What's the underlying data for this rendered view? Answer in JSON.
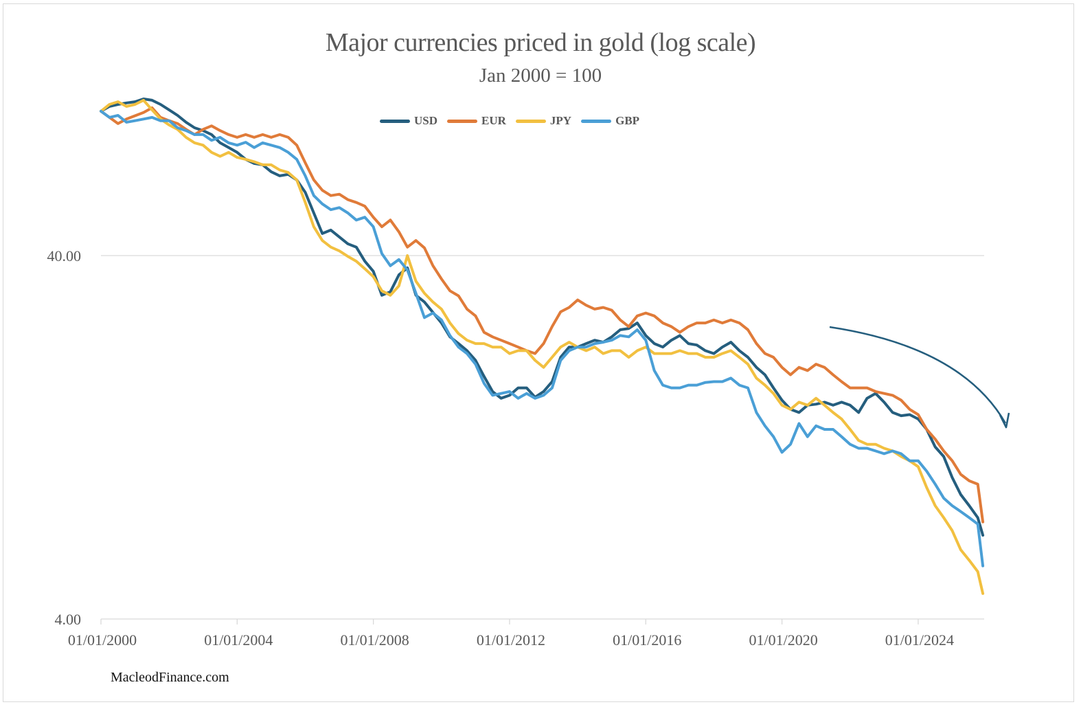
{
  "chart_data": {
    "type": "line",
    "title": "Major currencies priced in gold (log scale)",
    "subtitle": "Jan 2000 = 100",
    "xlabel": "",
    "ylabel": "",
    "y_scale": "log",
    "ylim": [
      4,
      150
    ],
    "y_ticks": [
      4,
      40
    ],
    "y_tick_labels": [
      "4.00",
      "40.00"
    ],
    "x_ticks": [
      2000,
      2004,
      2008,
      2012,
      2016,
      2020,
      2024
    ],
    "x_tick_labels": [
      "01/01/2000",
      "01/01/2004",
      "01/01/2008",
      "01/01/2012",
      "01/01/2016",
      "01/01/2020",
      "01/01/2024"
    ],
    "xlim": [
      2000,
      2025.9
    ],
    "grid": "horizontal",
    "legend_position": "top-center",
    "annotation": "downward-curved-arrow",
    "x": [
      2000.0,
      2000.25,
      2000.5,
      2000.75,
      2001.0,
      2001.25,
      2001.5,
      2001.75,
      2002.0,
      2002.25,
      2002.5,
      2002.75,
      2003.0,
      2003.25,
      2003.5,
      2003.75,
      2004.0,
      2004.25,
      2004.5,
      2004.75,
      2005.0,
      2005.25,
      2005.5,
      2005.75,
      2006.0,
      2006.25,
      2006.5,
      2006.75,
      2007.0,
      2007.25,
      2007.5,
      2007.75,
      2008.0,
      2008.25,
      2008.5,
      2008.75,
      2009.0,
      2009.25,
      2009.5,
      2009.75,
      2010.0,
      2010.25,
      2010.5,
      2010.75,
      2011.0,
      2011.25,
      2011.5,
      2011.75,
      2012.0,
      2012.25,
      2012.5,
      2012.75,
      2013.0,
      2013.25,
      2013.5,
      2013.75,
      2014.0,
      2014.25,
      2014.5,
      2014.75,
      2015.0,
      2015.25,
      2015.5,
      2015.75,
      2016.0,
      2016.25,
      2016.5,
      2016.75,
      2017.0,
      2017.25,
      2017.5,
      2017.75,
      2018.0,
      2018.25,
      2018.5,
      2018.75,
      2019.0,
      2019.25,
      2019.5,
      2019.75,
      2020.0,
      2020.25,
      2020.5,
      2020.75,
      2021.0,
      2021.25,
      2021.5,
      2021.75,
      2022.0,
      2022.25,
      2022.5,
      2022.75,
      2023.0,
      2023.25,
      2023.5,
      2023.75,
      2024.0,
      2024.25,
      2024.5,
      2024.75,
      2025.0,
      2025.25,
      2025.5,
      2025.75,
      2025.9
    ],
    "series": [
      {
        "name": "USD",
        "color": "#255e7e",
        "values": [
          99.8,
          102.9,
          104.2,
          105.2,
          106.0,
          107.9,
          107.0,
          104.2,
          100.7,
          97.2,
          93.1,
          89.9,
          88.3,
          86.1,
          81.7,
          79.3,
          76.9,
          73.6,
          71.7,
          71.1,
          68.0,
          66.3,
          66.9,
          64.6,
          59.7,
          52.4,
          46.0,
          47.0,
          45.0,
          43.1,
          42.2,
          38.6,
          36.2,
          31.1,
          31.8,
          35.4,
          37.0,
          31.1,
          29.8,
          27.9,
          26.1,
          23.9,
          22.9,
          21.9,
          20.6,
          18.6,
          16.9,
          16.2,
          16.5,
          17.3,
          17.3,
          16.3,
          16.9,
          18.0,
          21.0,
          22.4,
          22.4,
          22.9,
          23.4,
          23.1,
          23.9,
          25.0,
          25.2,
          26.1,
          24.1,
          22.9,
          22.4,
          23.4,
          24.1,
          22.9,
          22.7,
          21.9,
          21.5,
          22.4,
          23.1,
          21.9,
          21.0,
          19.7,
          18.8,
          17.3,
          16.0,
          15.1,
          14.8,
          15.5,
          15.6,
          15.8,
          15.5,
          15.8,
          15.5,
          14.8,
          16.2,
          16.7,
          15.8,
          14.8,
          14.5,
          14.6,
          14.2,
          13.3,
          11.9,
          11.2,
          9.8,
          8.8,
          8.2,
          7.6,
          6.8
        ]
      },
      {
        "name": "EUR",
        "color": "#e07b39",
        "values": [
          99.8,
          96.0,
          92.3,
          95.0,
          97.0,
          99.0,
          102.0,
          96.0,
          94.0,
          92.3,
          89.0,
          86.1,
          89.0,
          91.0,
          88.3,
          86.1,
          84.6,
          86.1,
          84.6,
          86.1,
          84.6,
          86.1,
          84.6,
          80.5,
          72.0,
          64.6,
          60.5,
          58.5,
          59.0,
          57.0,
          56.0,
          54.7,
          51.0,
          48.0,
          50.1,
          46.5,
          42.2,
          44.0,
          42.0,
          37.5,
          34.5,
          32.0,
          31.0,
          28.5,
          27.3,
          24.6,
          23.9,
          23.4,
          22.9,
          22.4,
          21.9,
          21.5,
          22.9,
          25.5,
          28.0,
          28.8,
          30.2,
          29.2,
          28.5,
          28.8,
          28.3,
          26.6,
          25.5,
          27.3,
          27.8,
          27.3,
          26.1,
          25.5,
          24.6,
          25.5,
          26.1,
          26.1,
          26.6,
          26.1,
          26.6,
          26.1,
          25.0,
          22.9,
          21.5,
          21.0,
          19.7,
          18.8,
          19.7,
          19.3,
          20.1,
          19.7,
          18.8,
          18.0,
          17.3,
          17.3,
          17.3,
          16.9,
          16.7,
          16.5,
          16.0,
          15.1,
          14.6,
          13.3,
          12.5,
          11.6,
          10.9,
          10.0,
          9.6,
          9.4,
          7.4
        ]
      },
      {
        "name": "JPY",
        "color": "#f2c040",
        "values": [
          99.8,
          104.2,
          106.0,
          102.9,
          104.2,
          107.0,
          100.7,
          95.0,
          91.5,
          89.0,
          84.6,
          81.7,
          80.5,
          76.9,
          75.0,
          76.9,
          74.5,
          73.6,
          72.5,
          71.1,
          71.1,
          68.8,
          67.7,
          64.6,
          56.0,
          48.0,
          44.0,
          42.2,
          41.2,
          39.8,
          38.6,
          36.8,
          35.0,
          32.0,
          31.1,
          33.0,
          40.0,
          34.0,
          31.5,
          29.8,
          28.5,
          26.1,
          24.4,
          23.4,
          22.9,
          22.9,
          22.4,
          22.4,
          21.5,
          21.9,
          21.9,
          20.6,
          19.7,
          21.0,
          22.4,
          23.1,
          22.4,
          21.9,
          22.4,
          21.5,
          21.9,
          21.9,
          21.0,
          21.9,
          22.4,
          21.5,
          21.5,
          21.5,
          21.9,
          21.5,
          21.5,
          21.0,
          21.0,
          21.5,
          21.9,
          21.0,
          20.1,
          18.4,
          17.6,
          16.7,
          15.5,
          15.1,
          15.8,
          15.5,
          16.2,
          15.5,
          14.8,
          14.2,
          13.3,
          12.4,
          12.1,
          12.1,
          11.8,
          11.6,
          11.2,
          10.9,
          10.5,
          9.2,
          8.2,
          7.6,
          7.0,
          6.2,
          5.8,
          5.4,
          4.7
        ]
      },
      {
        "name": "GBP",
        "color": "#4a9fd6",
        "values": [
          99.8,
          96.0,
          97.2,
          93.1,
          94.0,
          95.0,
          96.0,
          94.0,
          94.0,
          89.9,
          88.3,
          86.1,
          86.1,
          83.0,
          84.6,
          81.7,
          80.5,
          82.0,
          79.3,
          81.7,
          80.5,
          79.3,
          76.9,
          73.6,
          66.3,
          58.5,
          55.5,
          53.5,
          54.2,
          52.4,
          50.1,
          51.0,
          48.0,
          40.5,
          37.5,
          39.0,
          36.5,
          31.5,
          27.0,
          27.8,
          26.6,
          24.1,
          22.4,
          21.5,
          20.1,
          17.8,
          16.5,
          16.7,
          16.9,
          16.2,
          16.7,
          16.2,
          16.5,
          17.3,
          20.6,
          21.9,
          22.4,
          22.4,
          22.9,
          23.1,
          23.4,
          24.1,
          23.9,
          25.0,
          23.4,
          19.3,
          17.6,
          17.3,
          17.3,
          17.6,
          17.6,
          17.9,
          18.0,
          18.0,
          18.4,
          17.6,
          17.3,
          14.8,
          13.6,
          12.7,
          11.5,
          12.1,
          13.8,
          12.7,
          13.6,
          13.3,
          13.3,
          12.7,
          12.1,
          11.8,
          11.8,
          11.6,
          11.4,
          11.6,
          11.4,
          10.9,
          10.9,
          10.2,
          9.4,
          8.6,
          8.2,
          7.9,
          7.6,
          7.3,
          5.6
        ]
      }
    ]
  },
  "watermark": "MacleodFinance.com"
}
